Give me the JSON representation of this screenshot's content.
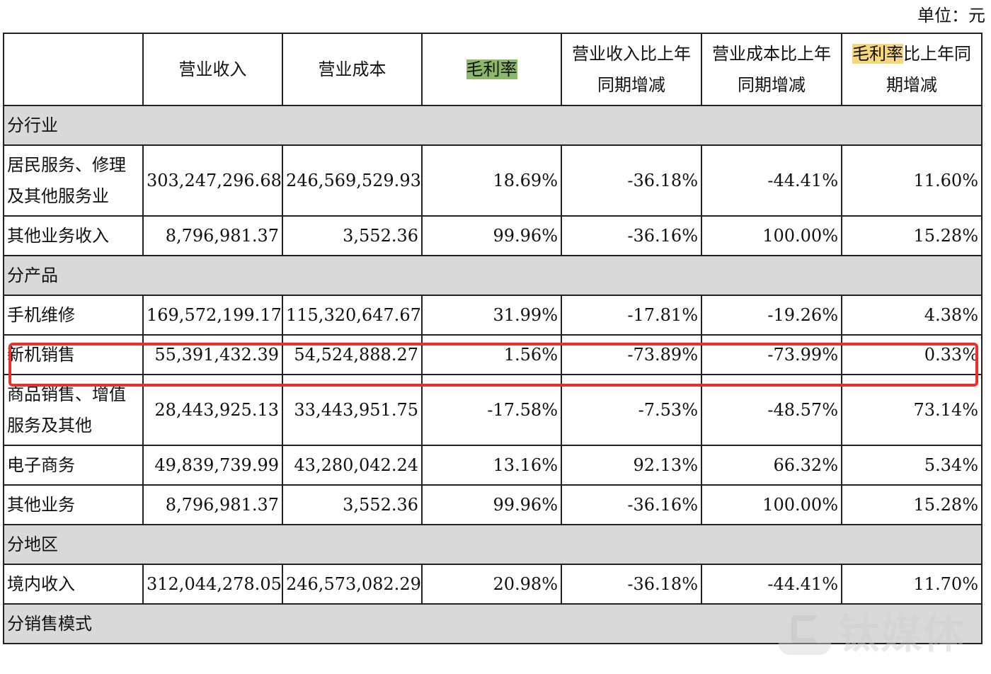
{
  "unit_label": "单位：元",
  "headers": {
    "revenue": "营业收入",
    "cost": "营业成本",
    "margin": "毛利率",
    "revenue_change": "营业收入比上年同期增减",
    "cost_change": "营业成本比上年同期增减",
    "margin_change_highlight": "毛利率",
    "margin_change_rest": "比上年同期增减"
  },
  "sections": {
    "industry": "分行业",
    "product": "分产品",
    "region": "分地区",
    "sales_mode": "分销售模式"
  },
  "rows": {
    "resident_services": {
      "name": "居民服务、修理及其他服务业",
      "revenue": "303,247,296.68",
      "cost": "246,569,529.93",
      "margin": "18.69%",
      "rev_change": "-36.18%",
      "cost_change": "-44.41%",
      "margin_change": "11.60%"
    },
    "other_business_income": {
      "name": "其他业务收入",
      "revenue": "8,796,981.37",
      "cost": "3,552.36",
      "margin": "99.96%",
      "rev_change": "-36.16%",
      "cost_change": "100.00%",
      "margin_change": "15.28%"
    },
    "phone_repair": {
      "name": "手机维修",
      "revenue": "169,572,199.17",
      "cost": "115,320,647.67",
      "margin": "31.99%",
      "rev_change": "-17.81%",
      "cost_change": "-19.26%",
      "margin_change": "4.38%"
    },
    "new_phone_sales": {
      "name": "新机销售",
      "revenue": "55,391,432.39",
      "cost": "54,524,888.27",
      "margin": "1.56%",
      "rev_change": "-73.89%",
      "cost_change": "-73.99%",
      "margin_change": "0.33%"
    },
    "goods_sales": {
      "name": "商品销售、增值服务及其他",
      "revenue": "28,443,925.13",
      "cost": "33,443,951.75",
      "margin": "-17.58%",
      "rev_change": "-7.53%",
      "cost_change": "-48.57%",
      "margin_change": "73.14%"
    },
    "ecommerce": {
      "name": "电子商务",
      "revenue": "49,839,739.99",
      "cost": "43,280,042.24",
      "margin": "13.16%",
      "rev_change": "92.13%",
      "cost_change": "66.32%",
      "margin_change": "5.34%"
    },
    "other_business": {
      "name": "其他业务",
      "revenue": "8,796,981.37",
      "cost": "3,552.36",
      "margin": "99.96%",
      "rev_change": "-36.16%",
      "cost_change": "100.00%",
      "margin_change": "15.28%"
    },
    "domestic_income": {
      "name": "境内收入",
      "revenue": "312,044,278.05",
      "cost": "246,573,082.29",
      "margin": "20.98%",
      "rev_change": "-36.18%",
      "cost_change": "-44.41%",
      "margin_change": "11.70%"
    }
  },
  "watermark": {
    "text": "钛媒体",
    "icon": "tmtpost-logo-icon"
  },
  "colors": {
    "highlight_box": "#e8302d",
    "section_bg": "#d9d9d9",
    "green_highlight": "#8cb86a",
    "yellow_highlight": "#f7d77c"
  }
}
